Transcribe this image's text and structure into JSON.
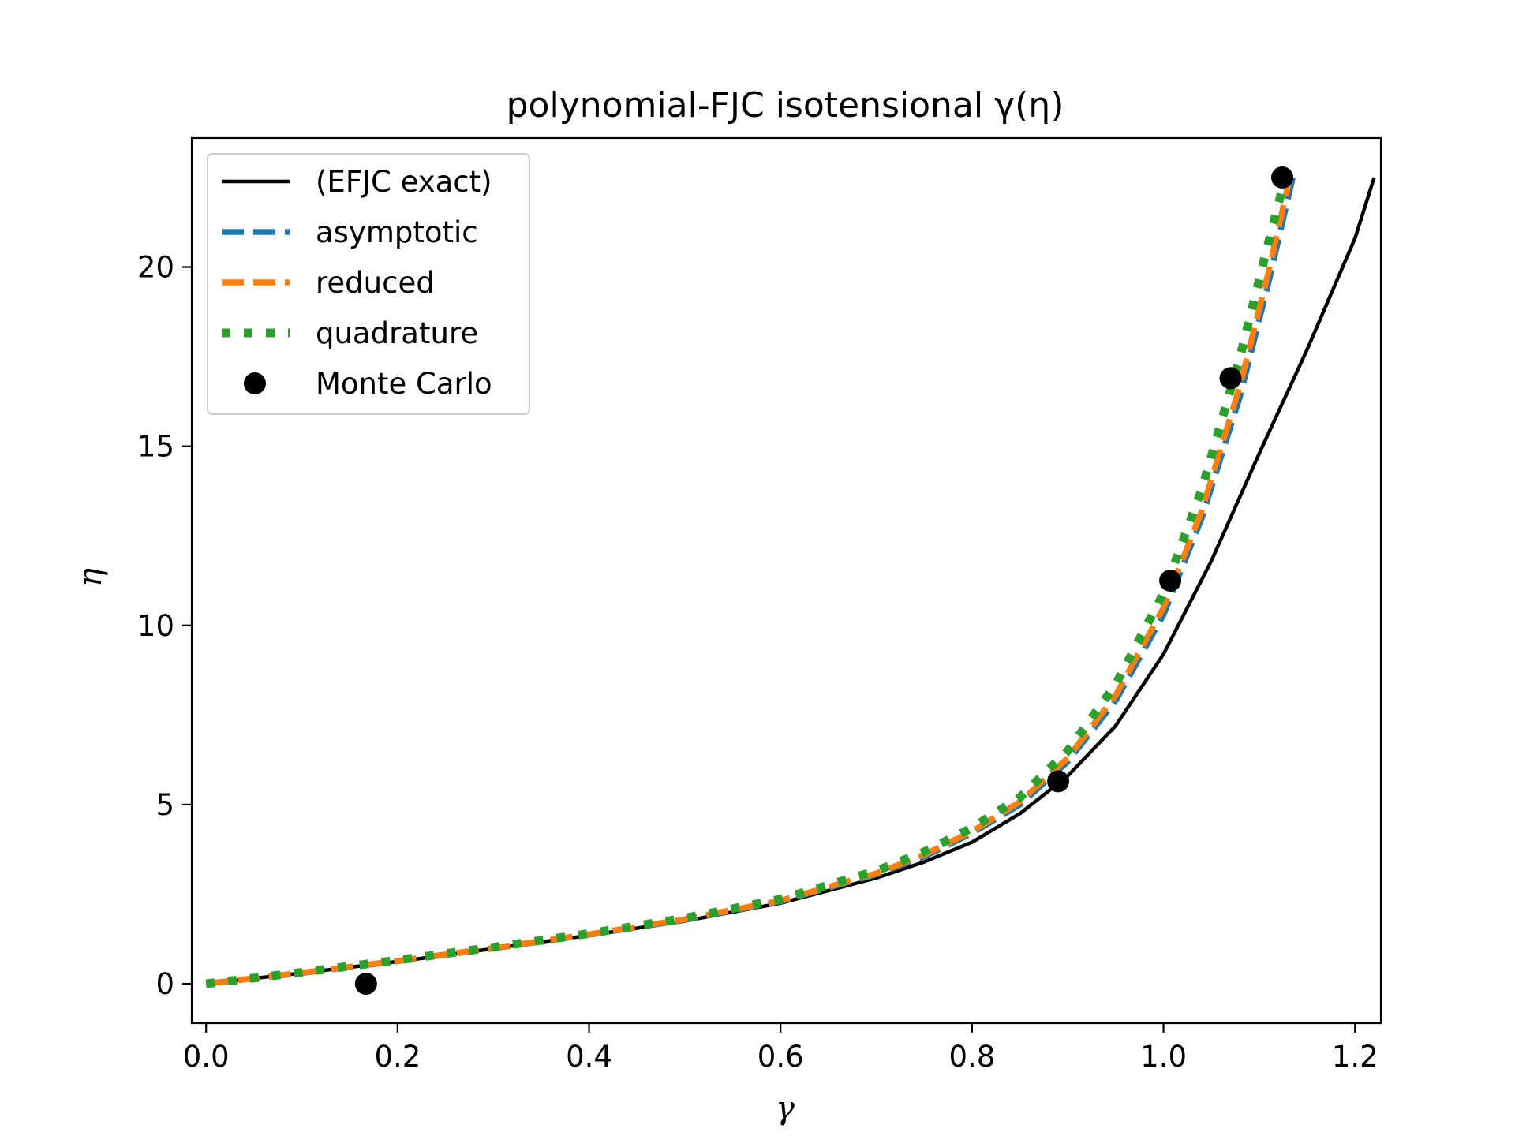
{
  "chart_data": {
    "type": "line",
    "title": "polynomial-FJC isotensional γ(η)",
    "xlabel": "γ",
    "ylabel": "η",
    "xlim": [
      -0.015,
      1.227
    ],
    "ylim": [
      -1.1,
      23.6
    ],
    "xticks": [
      0.0,
      0.2,
      0.4,
      0.6,
      0.8,
      1.0,
      1.2
    ],
    "xtick_labels": [
      "0.0",
      "0.2",
      "0.4",
      "0.6",
      "0.8",
      "1.0",
      "1.2"
    ],
    "yticks": [
      0,
      5,
      10,
      15,
      20
    ],
    "ytick_labels": [
      "0",
      "5",
      "10",
      "15",
      "20"
    ],
    "grid": false,
    "legend_position": "top-left",
    "series": [
      {
        "name": "(EFJC exact)",
        "style": "solid",
        "color": "#000000",
        "x": [
          0.0,
          0.1,
          0.2,
          0.3,
          0.4,
          0.5,
          0.6,
          0.7,
          0.75,
          0.8,
          0.85,
          0.9,
          0.95,
          1.0,
          1.05,
          1.1,
          1.15,
          1.2,
          1.22
        ],
        "y": [
          0.0,
          0.3,
          0.62,
          0.98,
          1.35,
          1.75,
          2.25,
          2.95,
          3.4,
          3.95,
          4.75,
          5.8,
          7.2,
          9.2,
          11.8,
          14.8,
          17.7,
          20.8,
          22.5
        ]
      },
      {
        "name": "asymptotic",
        "style": "dashed",
        "color": "#1f77b4",
        "x": [
          0.0,
          0.1,
          0.2,
          0.3,
          0.4,
          0.5,
          0.6,
          0.7,
          0.75,
          0.8,
          0.85,
          0.9,
          0.95,
          1.0,
          1.04,
          1.08,
          1.11,
          1.135
        ],
        "y": [
          0.0,
          0.3,
          0.63,
          0.99,
          1.37,
          1.78,
          2.3,
          3.05,
          3.55,
          4.2,
          5.0,
          6.2,
          7.9,
          10.3,
          13.0,
          16.4,
          19.6,
          22.5
        ]
      },
      {
        "name": "reduced",
        "style": "dashed",
        "color": "#ff7f0e",
        "x": [
          0.0,
          0.1,
          0.2,
          0.3,
          0.4,
          0.5,
          0.6,
          0.7,
          0.75,
          0.8,
          0.85,
          0.9,
          0.95,
          1.0,
          1.04,
          1.08,
          1.11,
          1.132
        ],
        "y": [
          0.0,
          0.31,
          0.64,
          1.0,
          1.38,
          1.8,
          2.32,
          3.08,
          3.6,
          4.25,
          5.08,
          6.3,
          8.05,
          10.5,
          13.2,
          16.7,
          19.9,
          22.5
        ]
      },
      {
        "name": "quadrature",
        "style": "dotted",
        "color": "#2ca02c",
        "x": [
          0.0,
          0.1,
          0.2,
          0.3,
          0.4,
          0.5,
          0.6,
          0.7,
          0.75,
          0.8,
          0.85,
          0.9,
          0.95,
          1.0,
          1.04,
          1.08,
          1.105,
          1.127
        ],
        "y": [
          0.0,
          0.32,
          0.66,
          1.02,
          1.4,
          1.83,
          2.36,
          3.15,
          3.68,
          4.35,
          5.2,
          6.5,
          8.35,
          10.9,
          13.8,
          17.5,
          20.2,
          22.5
        ]
      },
      {
        "name": "Monte Carlo",
        "style": "markers",
        "color": "#000000",
        "x": [
          0.167,
          0.89,
          1.007,
          1.07,
          1.124
        ],
        "y": [
          0.0,
          5.65,
          11.25,
          16.9,
          22.5
        ]
      }
    ]
  }
}
